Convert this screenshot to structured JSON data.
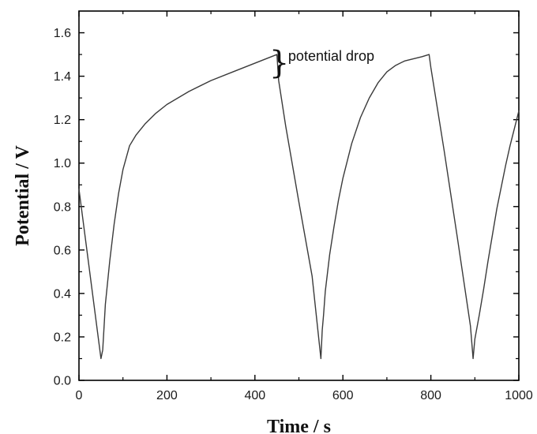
{
  "chart_data": {
    "type": "line",
    "title": "",
    "xlabel": "Time / s",
    "ylabel": "Potential / V",
    "xlim": [
      0,
      1000
    ],
    "ylim": [
      0,
      1.7
    ],
    "xticks": [
      0,
      200,
      400,
      600,
      800,
      1000
    ],
    "xtick_labels": [
      "0",
      "200",
      "400",
      "600",
      "800",
      "1000"
    ],
    "yticks": [
      0.0,
      0.2,
      0.4,
      0.6,
      0.8,
      1.0,
      1.2,
      1.4,
      1.6
    ],
    "ytick_labels": [
      "0.0",
      "0.2",
      "0.4",
      "0.6",
      "0.8",
      "1.0",
      "1.2",
      "1.4",
      "1.6"
    ],
    "grid": false,
    "legend": "none",
    "series": [
      {
        "x": [
          0,
          50,
          54,
          60,
          70,
          80,
          90,
          100,
          115,
          130,
          150,
          175,
          200,
          250,
          300,
          350,
          400,
          450,
          454,
          470,
          500,
          530,
          550,
          553,
          556,
          560,
          570,
          580,
          590,
          600,
          620,
          640,
          660,
          680,
          700,
          720,
          740,
          760,
          780,
          796,
          800,
          830,
          860,
          890,
          896,
          900,
          910,
          920,
          930,
          940,
          950,
          960,
          970,
          980,
          990,
          1000
        ],
        "y": [
          0.88,
          0.1,
          0.14,
          0.35,
          0.55,
          0.72,
          0.86,
          0.97,
          1.08,
          1.13,
          1.18,
          1.23,
          1.27,
          1.33,
          1.38,
          1.42,
          1.46,
          1.5,
          1.38,
          1.17,
          0.82,
          0.48,
          0.1,
          0.23,
          0.3,
          0.41,
          0.58,
          0.71,
          0.83,
          0.93,
          1.09,
          1.21,
          1.3,
          1.37,
          1.42,
          1.45,
          1.47,
          1.48,
          1.49,
          1.5,
          1.44,
          1.06,
          0.66,
          0.25,
          0.1,
          0.19,
          0.3,
          0.42,
          0.55,
          0.67,
          0.79,
          0.89,
          0.99,
          1.08,
          1.16,
          1.24
        ]
      }
    ],
    "annotations": [
      {
        "text": "potential drop",
        "x": 490,
        "y": 1.5
      }
    ],
    "colors": {
      "line": "#3a3a3a",
      "axis": "#000000"
    }
  }
}
